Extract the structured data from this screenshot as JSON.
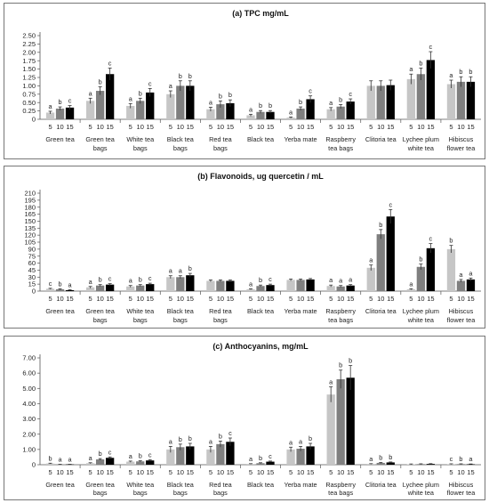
{
  "colors": {
    "s5": "#c6c6c6",
    "s10": "#7f7f7f",
    "s15": "#000000"
  },
  "chart_data": [
    {
      "type": "bar",
      "title": "(a) TPC mg/mL",
      "ylim": [
        0,
        2.5
      ],
      "yticks": [
        "0",
        "0.25",
        "0.50",
        "0.75",
        "1.00",
        "1.25",
        "1.50",
        "1.75",
        "2.00",
        "2.25",
        "2.50"
      ],
      "categories": [
        [
          "Green tea"
        ],
        [
          "Green tea",
          "bags"
        ],
        [
          "White tea",
          "bags"
        ],
        [
          "Black tea",
          "bags"
        ],
        [
          "Red tea",
          "bags"
        ],
        [
          "Black tea"
        ],
        [
          "Yerba mate"
        ],
        [
          "Raspberry",
          "tea bags"
        ],
        [
          "Clitoria tea"
        ],
        [
          "Lychee plum",
          "white tea"
        ],
        [
          "Hibiscus",
          "flower tea"
        ]
      ],
      "xn": [
        [
          "5",
          "10",
          "15"
        ],
        [
          "5",
          "10",
          "15"
        ],
        [
          "5",
          "10",
          "15"
        ],
        [
          "5",
          "10",
          "15"
        ],
        [
          "5",
          "10",
          "15"
        ],
        [
          "5",
          "10",
          "15"
        ],
        [
          "5",
          "10",
          "15"
        ],
        [
          "5",
          "10",
          "15"
        ],
        [
          "5",
          "10",
          "15"
        ],
        [
          "5",
          "10",
          "15"
        ],
        [
          "5",
          "10",
          "15"
        ]
      ],
      "series": [
        {
          "values": [
            0.2,
            0.55,
            0.4,
            0.75,
            0.3,
            0.12,
            0.05,
            0.3,
            1.0,
            1.2,
            1.05
          ],
          "err": [
            0.04,
            0.08,
            0.07,
            0.1,
            0.06,
            0.03,
            0.02,
            0.05,
            0.15,
            0.15,
            0.12
          ]
        },
        {
          "values": [
            0.32,
            0.85,
            0.55,
            1.0,
            0.45,
            0.22,
            0.32,
            0.38,
            1.0,
            1.35,
            1.12
          ],
          "err": [
            0.05,
            0.12,
            0.08,
            0.15,
            0.1,
            0.04,
            0.05,
            0.06,
            0.15,
            0.18,
            0.15
          ]
        },
        {
          "values": [
            0.35,
            1.35,
            0.8,
            1.0,
            0.48,
            0.22,
            0.6,
            0.53,
            1.02,
            1.77,
            1.12
          ],
          "err": [
            0.06,
            0.18,
            0.12,
            0.15,
            0.1,
            0.04,
            0.1,
            0.08,
            0.15,
            0.25,
            0.15
          ]
        }
      ],
      "labels": [
        [
          "a",
          "b",
          "c"
        ],
        [
          "a",
          "b",
          "c"
        ],
        [
          "a",
          "b",
          "c"
        ],
        [
          "a",
          "b",
          "b"
        ],
        [
          "a",
          "b",
          "b"
        ],
        [
          "a",
          "b",
          "b"
        ],
        [
          "a",
          "b",
          "c"
        ],
        [
          "a",
          "b",
          "c"
        ],
        [
          "",
          "",
          ""
        ],
        [
          "a",
          "b",
          "c"
        ],
        [
          "a",
          "b",
          "b"
        ]
      ]
    },
    {
      "type": "bar",
      "title": "(b) Flavonoids, ug quercetin / mL",
      "ylim": [
        0,
        210
      ],
      "yticks": [
        "0",
        "15",
        "30",
        "45",
        "60",
        "75",
        "90",
        "105",
        "120",
        "135",
        "150",
        "165",
        "180",
        "195",
        "210"
      ],
      "categories": [
        [
          "Green tea"
        ],
        [
          "Green tea",
          "bags"
        ],
        [
          "White tea",
          "bags"
        ],
        [
          "Black tea",
          "bags"
        ],
        [
          "Red tea",
          "bags"
        ],
        [
          "Black tea"
        ],
        [
          "Yerba mate"
        ],
        [
          "Raspberry",
          "tea bags"
        ],
        [
          "Clitoria tea"
        ],
        [
          "Lychee plum",
          "white tea"
        ],
        [
          "Hibiscus",
          "flower tea"
        ]
      ],
      "xn": [
        [
          "5",
          "10",
          "15"
        ],
        [
          "5",
          "10",
          "15"
        ],
        [
          "5",
          "10",
          "15"
        ],
        [
          "5",
          "10",
          "15"
        ],
        [
          "5",
          "10",
          "15"
        ],
        [
          "5",
          "10",
          "15"
        ],
        [
          "5",
          "10",
          "15"
        ],
        [
          "5",
          "10",
          "15"
        ],
        [
          "5",
          "10",
          "15"
        ],
        [
          "5",
          "10",
          "15"
        ],
        [
          "5",
          "10",
          "15"
        ]
      ],
      "series": [
        {
          "values": [
            5,
            8,
            10,
            30,
            22,
            4,
            24,
            11,
            50,
            4,
            90
          ],
          "err": [
            1,
            2,
            2,
            3,
            2,
            1,
            2,
            2,
            6,
            1,
            8
          ]
        },
        {
          "values": [
            4,
            12,
            12,
            30,
            22,
            11,
            24,
            10,
            122,
            52,
            22
          ],
          "err": [
            1,
            2,
            2,
            3,
            2,
            2,
            2,
            2,
            10,
            6,
            3
          ]
        },
        {
          "values": [
            2,
            14,
            15,
            34,
            22,
            13,
            25,
            12,
            160,
            92,
            25
          ],
          "err": [
            1,
            2,
            2,
            4,
            2,
            2,
            2,
            2,
            15,
            10,
            3
          ]
        }
      ],
      "labels": [
        [
          "c",
          "b",
          "a"
        ],
        [
          "a",
          "b",
          "c"
        ],
        [
          "a",
          "b",
          "c"
        ],
        [
          "a",
          "a",
          "b"
        ],
        [
          "",
          "",
          ""
        ],
        [
          "a",
          "b",
          "c"
        ],
        [
          "",
          "",
          ""
        ],
        [
          "a",
          "a",
          "a"
        ],
        [
          "a",
          "b",
          "c"
        ],
        [
          "a",
          "b",
          "c"
        ],
        [
          "b",
          "a",
          "a"
        ]
      ]
    },
    {
      "type": "bar",
      "title": "(c) Anthocyanins, mg/mL",
      "ylim": [
        0,
        7
      ],
      "yticks": [
        "0",
        "1.00",
        "2.00",
        "3.00",
        "4.00",
        "5.00",
        "6.00",
        "7.00"
      ],
      "categories": [
        [
          "Green tea"
        ],
        [
          "Green tea",
          "bags"
        ],
        [
          "White tea",
          "bags"
        ],
        [
          "Black tea",
          "bags"
        ],
        [
          "Red tea",
          "bags"
        ],
        [
          "Black tea"
        ],
        [
          "Yerba mate"
        ],
        [
          "Raspberry",
          "tea bags"
        ],
        [
          "Clitoria tea"
        ],
        [
          "Lychee plum",
          "white tea"
        ],
        [
          "Hibiscus",
          "flower tea"
        ]
      ],
      "xn": [
        [
          "5",
          "10",
          "15"
        ],
        [
          "5",
          "10",
          "15"
        ],
        [
          "5",
          "10",
          "15"
        ],
        [
          "5",
          "10",
          "15"
        ],
        [
          "5",
          "10",
          "15"
        ],
        [
          "5",
          "10",
          "15"
        ],
        [
          "5",
          "10",
          "15"
        ],
        [
          "5",
          "10",
          "15"
        ],
        [
          "5",
          "10",
          "15"
        ],
        [
          "5",
          "10",
          "15"
        ],
        [
          "5",
          "10",
          "15"
        ]
      ],
      "series": [
        {
          "values": [
            0.08,
            0.1,
            0.2,
            1.0,
            1.0,
            0.05,
            1.0,
            4.6,
            0.05,
            0.03,
            0.04
          ],
          "err": [
            0.02,
            0.03,
            0.04,
            0.2,
            0.2,
            0.02,
            0.15,
            0.5,
            0.02,
            0.02,
            0.02
          ]
        },
        {
          "values": [
            0.02,
            0.35,
            0.22,
            1.15,
            1.35,
            0.1,
            1.05,
            5.6,
            0.12,
            0.04,
            0.04
          ],
          "err": [
            0.01,
            0.05,
            0.04,
            0.2,
            0.2,
            0.03,
            0.15,
            0.6,
            0.03,
            0.02,
            0.02
          ]
        },
        {
          "values": [
            0.02,
            0.45,
            0.28,
            1.2,
            1.5,
            0.2,
            1.2,
            5.7,
            0.15,
            0.05,
            0.03
          ],
          "err": [
            0.01,
            0.06,
            0.05,
            0.2,
            0.25,
            0.04,
            0.2,
            0.8,
            0.03,
            0.02,
            0.02
          ]
        }
      ],
      "labels": [
        [
          "b",
          "a",
          "a"
        ],
        [
          "a",
          "b",
          "c"
        ],
        [
          "a",
          "b",
          "c"
        ],
        [
          "a",
          "b",
          "b"
        ],
        [
          "a",
          "b",
          "c"
        ],
        [
          "a",
          "b",
          "c"
        ],
        [
          "a",
          "a",
          "b"
        ],
        [
          "a",
          "b",
          "b"
        ],
        [
          "a",
          "b",
          "b"
        ],
        [
          "",
          "",
          ""
        ],
        [
          "c",
          "b",
          "a"
        ]
      ]
    }
  ]
}
